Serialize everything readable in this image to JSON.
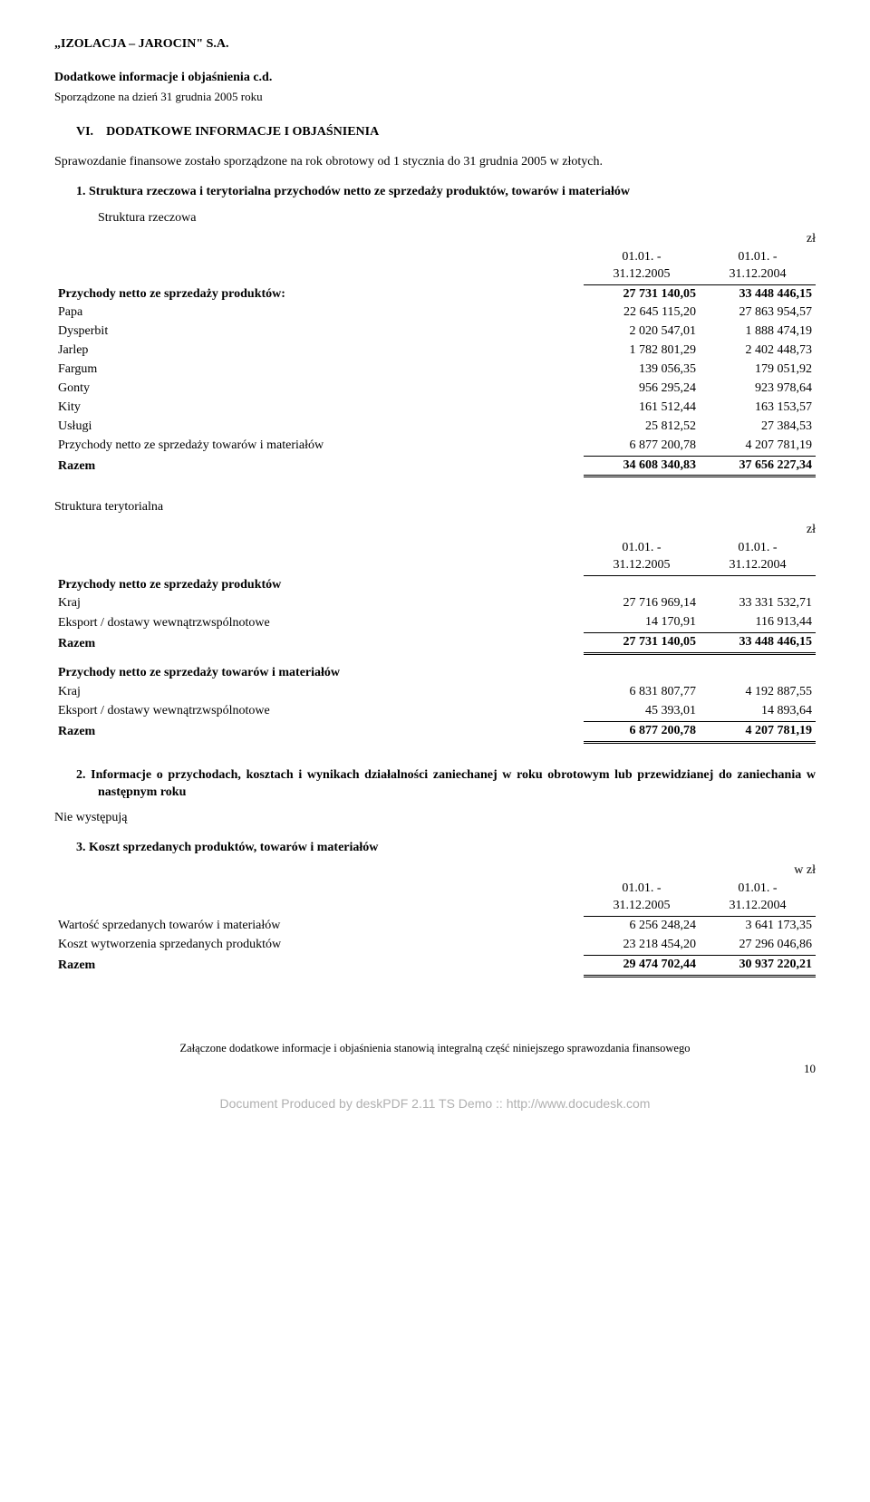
{
  "header": {
    "company": "„IZOLACJA – JAROCIN\" S.A.",
    "title": "Dodatkowe informacje i objaśnienia c.d.",
    "sub": "Sporządzone na dzień 31 grudnia 2005 roku"
  },
  "section_vi": {
    "roman": "VI.",
    "heading": "DODATKOWE INFORMACJE I OBJAŚNIENIA",
    "para": "Sprawozdanie finansowe zostało sporządzone na rok obrotowy od 1 stycznia do 31 grudnia 2005 w złotych."
  },
  "item1": {
    "num_text": "1.  Struktura rzeczowa i terytorialna przychodów netto ze sprzedaży produktów, towarów i materiałów",
    "sub": "Struktura rzeczowa",
    "unit": "zł"
  },
  "periods": {
    "p1": "01.01. -\n31.12.2005",
    "p2": "01.01. -\n31.12.2004"
  },
  "tableA": {
    "rows": [
      {
        "label": "Przychody netto ze sprzedaży produktów:",
        "v1": "27 731 140,05",
        "v2": "33 448 446,15",
        "bold": true,
        "hdrline": true
      },
      {
        "label": "Papa",
        "v1": "22 645 115,20",
        "v2": "27 863 954,57"
      },
      {
        "label": "Dysperbit",
        "v1": "2 020 547,01",
        "v2": "1 888 474,19"
      },
      {
        "label": "Jarlep",
        "v1": "1 782 801,29",
        "v2": "2 402 448,73"
      },
      {
        "label": "Fargum",
        "v1": "139 056,35",
        "v2": "179 051,92"
      },
      {
        "label": "Gonty",
        "v1": "956 295,24",
        "v2": "923 978,64"
      },
      {
        "label": "Kity",
        "v1": "161 512,44",
        "v2": "163 153,57"
      },
      {
        "label": "Usługi",
        "v1": "25 812,52",
        "v2": "27 384,53"
      },
      {
        "label": "Przychody netto ze sprzedaży towarów i materiałów",
        "v1": "6 877 200,78",
        "v2": "4 207 781,19",
        "uline": true
      },
      {
        "label": "Razem",
        "v1": "34 608 340,83",
        "v2": "37 656 227,34",
        "bold": true,
        "total": true
      }
    ]
  },
  "struct_ter": {
    "title": "Struktura terytorialna",
    "unit": "zł"
  },
  "tableB": {
    "rows": [
      {
        "label": "Przychody netto ze sprzedaży produktów",
        "v1": "",
        "v2": "",
        "bold": true,
        "labelonly": true
      },
      {
        "label": "Kraj",
        "v1": "27 716 969,14",
        "v2": "33 331 532,71"
      },
      {
        "label": "Eksport / dostawy wewnątrzwspólnotowe",
        "v1": "14 170,91",
        "v2": "116 913,44",
        "uline": true
      },
      {
        "label": "Razem",
        "v1": "27 731 140,05",
        "v2": "33 448 446,15",
        "bold": true,
        "total": true
      }
    ]
  },
  "tableC": {
    "rows": [
      {
        "label": "Przychody netto ze sprzedaży towarów i materiałów",
        "v1": "",
        "v2": "",
        "bold": true,
        "labelonly": true
      },
      {
        "label": "Kraj",
        "v1": "6 831 807,77",
        "v2": "4 192 887,55"
      },
      {
        "label": "Eksport / dostawy wewnątrzwspólnotowe",
        "v1": "45 393,01",
        "v2": "14 893,64",
        "uline": true
      },
      {
        "label": "Razem",
        "v1": "6 877 200,78",
        "v2": "4 207 781,19",
        "bold": true,
        "total": true
      }
    ]
  },
  "item2": {
    "num_text": "2.  Informacje o przychodach, kosztach i wynikach działalności zaniechanej w roku obrotowym lub przewidzianej do zaniechania w następnym roku",
    "body": "Nie występują"
  },
  "item3": {
    "num_text": "3.  Koszt sprzedanych produktów, towarów i materiałów",
    "unit": "w zł"
  },
  "tableD": {
    "rows": [
      {
        "label": "Wartość sprzedanych towarów i materiałów",
        "v1": "6 256 248,24",
        "v2": "3 641 173,35"
      },
      {
        "label": "Koszt wytworzenia sprzedanych produktów",
        "v1": "23 218 454,20",
        "v2": "27 296 046,86",
        "uline": true
      },
      {
        "label": "Razem",
        "v1": "29 474 702,44",
        "v2": "30 937 220,21",
        "bold": true,
        "total": true
      }
    ]
  },
  "footer": {
    "note": "Załączone dodatkowe informacje i objaśnienia stanowią integralną część niniejszego sprawozdania finansowego",
    "page": "10",
    "watermark": "Document Produced by deskPDF 2.11 TS Demo :: http://www.docudesk.com"
  }
}
